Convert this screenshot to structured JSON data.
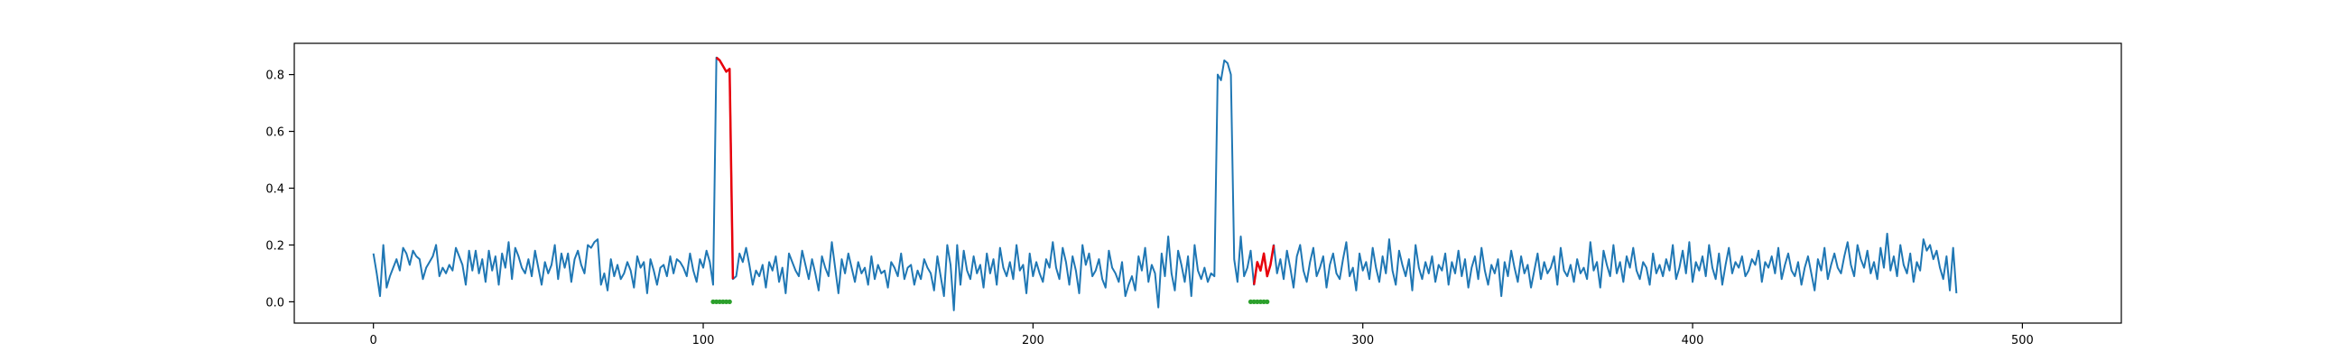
{
  "chart_data": {
    "type": "line",
    "title": "",
    "xlabel": "",
    "ylabel": "",
    "xlim": [
      -24,
      530
    ],
    "ylim": [
      -0.075,
      0.91
    ],
    "x_ticks": [
      0,
      100,
      200,
      300,
      400,
      500
    ],
    "y_ticks": [
      0.0,
      0.2,
      0.4,
      0.6,
      0.8
    ],
    "x_tick_labels": [
      "0",
      "100",
      "200",
      "300",
      "400",
      "500"
    ],
    "y_tick_labels": [
      "0.0",
      "0.2",
      "0.4",
      "0.6",
      "0.8"
    ],
    "grid": false,
    "legend": "none",
    "colors": {
      "signal": "#1f77b4",
      "anomaly": "#e8000b",
      "marker": "#2ca02c"
    },
    "series": [
      {
        "x_start": 0,
        "x_step": 1,
        "values": [
          0.17,
          0.1,
          0.02,
          0.2,
          0.05,
          0.09,
          0.12,
          0.15,
          0.11,
          0.19,
          0.17,
          0.13,
          0.18,
          0.16,
          0.15,
          0.08,
          0.12,
          0.14,
          0.16,
          0.2,
          0.09,
          0.12,
          0.1,
          0.13,
          0.11,
          0.19,
          0.16,
          0.13,
          0.06,
          0.18,
          0.11,
          0.18,
          0.1,
          0.15,
          0.07,
          0.18,
          0.11,
          0.16,
          0.06,
          0.17,
          0.12,
          0.21,
          0.08,
          0.19,
          0.16,
          0.12,
          0.1,
          0.15,
          0.09,
          0.18,
          0.12,
          0.06,
          0.14,
          0.1,
          0.13,
          0.2,
          0.08,
          0.17,
          0.12,
          0.17,
          0.07,
          0.15,
          0.18,
          0.13,
          0.1,
          0.2,
          0.19,
          0.21,
          0.22,
          0.06,
          0.1,
          0.04,
          0.15,
          0.09,
          0.13,
          0.08,
          0.1,
          0.14,
          0.11,
          0.05,
          0.16,
          0.12,
          0.14,
          0.03,
          0.15,
          0.11,
          0.06,
          0.12,
          0.13,
          0.09,
          0.16,
          0.1,
          0.15,
          0.14,
          0.12,
          0.09,
          0.17,
          0.11,
          0.07,
          0.15,
          0.12,
          0.18,
          0.14,
          0.06,
          0.86,
          0.85,
          0.83,
          0.81,
          0.82,
          0.08,
          0.09,
          0.17,
          0.14,
          0.19,
          0.13,
          0.06,
          0.11,
          0.09,
          0.13,
          0.05,
          0.14,
          0.11,
          0.16,
          0.07,
          0.12,
          0.03,
          0.17,
          0.14,
          0.11,
          0.09,
          0.18,
          0.13,
          0.08,
          0.15,
          0.1,
          0.04,
          0.16,
          0.12,
          0.09,
          0.21,
          0.12,
          0.03,
          0.15,
          0.1,
          0.17,
          0.12,
          0.07,
          0.14,
          0.1,
          0.12,
          0.06,
          0.16,
          0.08,
          0.13,
          0.1,
          0.11,
          0.05,
          0.14,
          0.12,
          0.09,
          0.17,
          0.08,
          0.12,
          0.13,
          0.06,
          0.11,
          0.08,
          0.15,
          0.12,
          0.1,
          0.04,
          0.16,
          0.09,
          0.02,
          0.2,
          0.13,
          -0.03,
          0.2,
          0.06,
          0.18,
          0.11,
          0.08,
          0.16,
          0.1,
          0.13,
          0.05,
          0.17,
          0.1,
          0.15,
          0.06,
          0.19,
          0.12,
          0.09,
          0.14,
          0.08,
          0.2,
          0.11,
          0.13,
          0.03,
          0.17,
          0.09,
          0.14,
          0.1,
          0.07,
          0.15,
          0.12,
          0.21,
          0.12,
          0.08,
          0.19,
          0.14,
          0.06,
          0.16,
          0.11,
          0.03,
          0.2,
          0.13,
          0.17,
          0.09,
          0.11,
          0.15,
          0.08,
          0.05,
          0.18,
          0.12,
          0.1,
          0.07,
          0.14,
          0.02,
          0.06,
          0.09,
          0.04,
          0.16,
          0.11,
          0.19,
          0.07,
          0.13,
          0.1,
          -0.02,
          0.17,
          0.09,
          0.23,
          0.1,
          0.04,
          0.18,
          0.13,
          0.07,
          0.16,
          0.02,
          0.2,
          0.11,
          0.08,
          0.12,
          0.07,
          0.1,
          0.09,
          0.8,
          0.78,
          0.85,
          0.84,
          0.8,
          0.15,
          0.07,
          0.23,
          0.09,
          0.12,
          0.18,
          0.06,
          0.14,
          0.11,
          0.17,
          0.09,
          0.13,
          0.2,
          0.1,
          0.15,
          0.08,
          0.18,
          0.12,
          0.05,
          0.16,
          0.2,
          0.11,
          0.07,
          0.14,
          0.19,
          0.09,
          0.12,
          0.16,
          0.05,
          0.13,
          0.17,
          0.1,
          0.08,
          0.15,
          0.21,
          0.09,
          0.12,
          0.04,
          0.17,
          0.11,
          0.14,
          0.08,
          0.19,
          0.12,
          0.07,
          0.16,
          0.1,
          0.22,
          0.11,
          0.06,
          0.18,
          0.13,
          0.09,
          0.15,
          0.04,
          0.2,
          0.12,
          0.08,
          0.14,
          0.1,
          0.16,
          0.07,
          0.13,
          0.11,
          0.17,
          0.06,
          0.14,
          0.1,
          0.18,
          0.09,
          0.15,
          0.05,
          0.12,
          0.16,
          0.08,
          0.19,
          0.11,
          0.06,
          0.13,
          0.1,
          0.15,
          0.02,
          0.14,
          0.09,
          0.18,
          0.12,
          0.07,
          0.16,
          0.1,
          0.13,
          0.05,
          0.11,
          0.17,
          0.08,
          0.14,
          0.1,
          0.12,
          0.16,
          0.06,
          0.19,
          0.11,
          0.09,
          0.13,
          0.07,
          0.15,
          0.1,
          0.12,
          0.08,
          0.21,
          0.11,
          0.14,
          0.05,
          0.18,
          0.13,
          0.09,
          0.2,
          0.1,
          0.14,
          0.07,
          0.16,
          0.12,
          0.19,
          0.11,
          0.08,
          0.14,
          0.12,
          0.06,
          0.17,
          0.1,
          0.13,
          0.09,
          0.15,
          0.11,
          0.2,
          0.08,
          0.12,
          0.18,
          0.1,
          0.21,
          0.07,
          0.14,
          0.11,
          0.16,
          0.09,
          0.2,
          0.12,
          0.08,
          0.17,
          0.06,
          0.13,
          0.19,
          0.1,
          0.14,
          0.12,
          0.16,
          0.09,
          0.11,
          0.15,
          0.13,
          0.18,
          0.07,
          0.14,
          0.12,
          0.16,
          0.1,
          0.19,
          0.08,
          0.13,
          0.17,
          0.11,
          0.09,
          0.14,
          0.06,
          0.12,
          0.16,
          0.1,
          0.04,
          0.15,
          0.11,
          0.19,
          0.08,
          0.13,
          0.17,
          0.12,
          0.1,
          0.16,
          0.21,
          0.13,
          0.09,
          0.2,
          0.15,
          0.12,
          0.18,
          0.1,
          0.14,
          0.08,
          0.19,
          0.12,
          0.24,
          0.11,
          0.16,
          0.09,
          0.2,
          0.13,
          0.1,
          0.17,
          0.07,
          0.14,
          0.11,
          0.22,
          0.18,
          0.2,
          0.15,
          0.18,
          0.12,
          0.08,
          0.16,
          0.04,
          0.19,
          0.03
        ]
      }
    ],
    "anomalies": [
      {
        "x_start": 104,
        "x_end": 109
      },
      {
        "x_start": 267,
        "x_end": 273
      }
    ],
    "markers": [
      {
        "x_start": 103,
        "x_end": 108,
        "y": 0
      },
      {
        "x_start": 266,
        "x_end": 271,
        "y": 0
      }
    ]
  }
}
